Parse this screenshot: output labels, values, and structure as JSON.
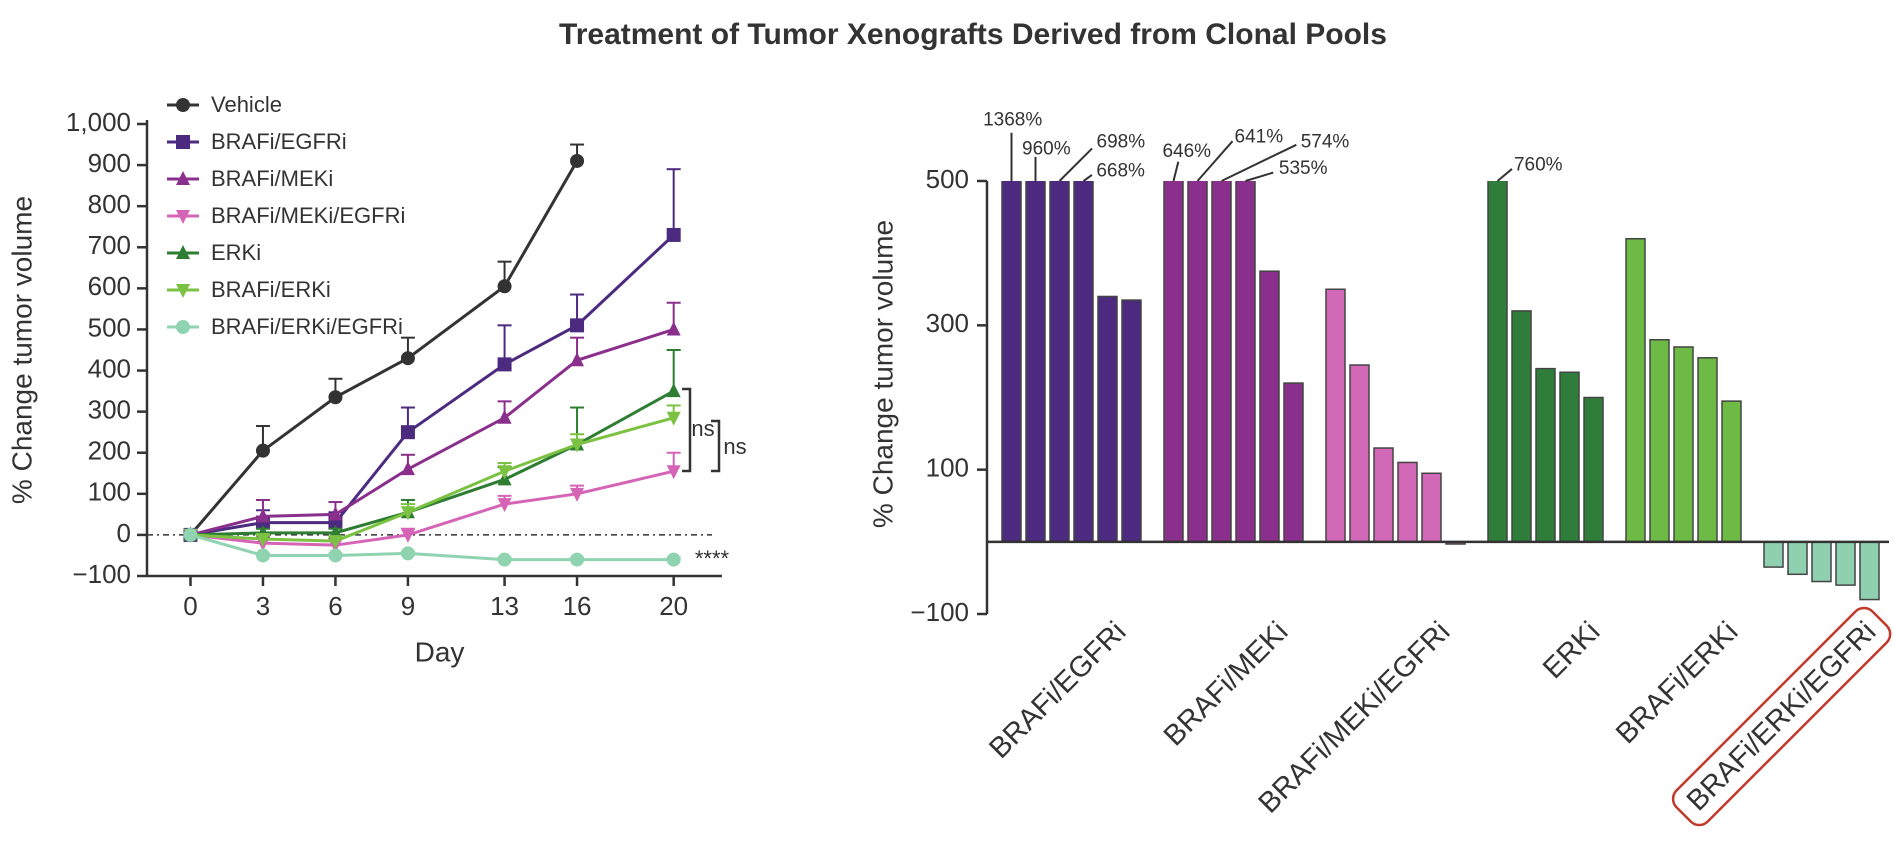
{
  "title": "Treatment of Tumor Xenografts Derived from Clonal Pools",
  "chart_data": [
    {
      "type": "line",
      "xlabel": "Day",
      "ylabel": "% Change tumor volume",
      "x": [
        0,
        3,
        6,
        9,
        13,
        16,
        20
      ],
      "xlim": [
        -1.8,
        22
      ],
      "xticks": [
        0,
        3,
        6,
        9,
        13,
        16,
        20
      ],
      "ylim": [
        -100,
        1000
      ],
      "yticks": [
        {
          "value": -100,
          "label": "−100"
        },
        0,
        100,
        200,
        300,
        400,
        500,
        600,
        700,
        800,
        900,
        {
          "value": 1000,
          "label": "1,000"
        }
      ],
      "legend": "upper left",
      "series": [
        {
          "name": "Vehicle",
          "color": "#333333",
          "marker": "circle",
          "values": [
            0,
            205,
            335,
            430,
            605,
            910,
            null
          ],
          "errors": [
            0,
            60,
            45,
            50,
            60,
            40,
            null
          ]
        },
        {
          "name": "BRAFi/EGFRi",
          "color": "#4b2a80",
          "marker": "square",
          "values": [
            0,
            30,
            30,
            250,
            415,
            510,
            730
          ],
          "errors": [
            0,
            30,
            25,
            60,
            95,
            75,
            160
          ]
        },
        {
          "name": "BRAFi/MEKi",
          "color": "#8a2f8c",
          "marker": "triangle-up",
          "values": [
            0,
            45,
            50,
            160,
            285,
            425,
            500
          ],
          "errors": [
            0,
            40,
            30,
            35,
            40,
            55,
            65
          ]
        },
        {
          "name": "BRAFi/MEKi/EGFRi",
          "color": "#d564b6",
          "marker": "triangle-down",
          "values": [
            0,
            -20,
            -25,
            0,
            75,
            100,
            155
          ],
          "errors": [
            0,
            15,
            15,
            15,
            20,
            20,
            45
          ]
        },
        {
          "name": "ERKi",
          "color": "#2e7d32",
          "marker": "triangle-up",
          "values": [
            0,
            5,
            5,
            55,
            135,
            220,
            350
          ],
          "errors": [
            0,
            10,
            10,
            30,
            30,
            90,
            100
          ]
        },
        {
          "name": "BRAFi/ERKi",
          "color": "#7cc242",
          "marker": "triangle-down",
          "values": [
            0,
            -10,
            -15,
            55,
            155,
            220,
            285
          ],
          "errors": [
            0,
            10,
            10,
            20,
            20,
            25,
            30
          ]
        },
        {
          "name": "BRAFi/ERKi/EGFRi",
          "color": "#8fd3b0",
          "marker": "circle",
          "values": [
            0,
            -50,
            -50,
            -45,
            -60,
            -60,
            -60
          ],
          "errors": [
            0,
            5,
            5,
            5,
            5,
            5,
            5
          ]
        }
      ],
      "annotations": [
        "ns",
        "ns",
        "****"
      ]
    },
    {
      "type": "bar",
      "ylabel": "% Change tumor volume",
      "ylim": [
        -100,
        500
      ],
      "yticks": [
        {
          "value": -100,
          "label": "−100"
        },
        100,
        300,
        500
      ],
      "series": [
        {
          "name": "BRAFi/EGFRi",
          "color": "#4b2a80",
          "values": [
            1368,
            960,
            698,
            668,
            340,
            335
          ],
          "value_labels": [
            "1368%",
            "960%",
            "698%",
            "668%",
            null,
            null
          ]
        },
        {
          "name": "BRAFi/MEKi",
          "color": "#8a2f8c",
          "values": [
            646,
            641,
            574,
            535,
            375,
            220
          ],
          "value_labels": [
            "646%",
            "641%",
            "574%",
            "535%",
            null,
            null
          ]
        },
        {
          "name": "BRAFi/MEKi/EGFRi",
          "color": "#d268b8",
          "values": [
            350,
            245,
            130,
            110,
            95,
            -3
          ]
        },
        {
          "name": "ERKi",
          "color": "#2f7d3a",
          "values": [
            760,
            320,
            240,
            235,
            200
          ],
          "value_labels": [
            "760%",
            null,
            null,
            null,
            null
          ]
        },
        {
          "name": "BRAFi/ERKi",
          "color": "#6dbb45",
          "values": [
            420,
            280,
            270,
            255,
            195
          ]
        },
        {
          "name": "BRAFi/ERKi/EGFRi",
          "color": "#8fd0b0",
          "values": [
            -35,
            -45,
            -55,
            -60,
            -80
          ]
        }
      ]
    }
  ]
}
